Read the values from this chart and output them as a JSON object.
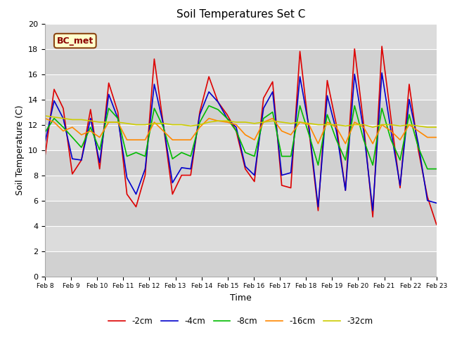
{
  "title": "Soil Temperatures Set C",
  "xlabel": "Time",
  "ylabel": "Soil Temperature (C)",
  "ylim": [
    0,
    20
  ],
  "yticks": [
    0,
    2,
    4,
    6,
    8,
    10,
    12,
    14,
    16,
    18,
    20
  ],
  "annotation_text": "BC_met",
  "bg_color": "#d8d8d8",
  "fig_color": "#ffffff",
  "line_colors": {
    "-2cm": "#dd0000",
    "-4cm": "#0000cc",
    "-8cm": "#00bb00",
    "-16cm": "#ff8800",
    "-32cm": "#cccc00"
  },
  "legend_labels": [
    "-2cm",
    "-4cm",
    "-8cm",
    "-16cm",
    "-32cm"
  ],
  "x_tick_labels": [
    "Feb 8",
    "Feb 9",
    "Feb 10",
    "Feb 11",
    "Feb 12",
    "Feb 13",
    "Feb 14",
    "Feb 15",
    "Feb 16",
    "Feb 17",
    "Feb 18",
    "Feb 19",
    "Feb 20",
    "Feb 21",
    "Feb 22",
    "Feb 23"
  ],
  "data_2cm": [
    9.5,
    14.8,
    13.3,
    8.1,
    9.2,
    13.2,
    8.5,
    15.3,
    13.0,
    6.5,
    5.5,
    8.0,
    17.2,
    12.0,
    6.5,
    8.0,
    8.0,
    13.0,
    15.8,
    13.8,
    12.8,
    11.5,
    8.5,
    7.5,
    14.1,
    15.4,
    7.2,
    7.0,
    17.8,
    11.5,
    5.2,
    15.5,
    12.0,
    6.8,
    18.0,
    12.0,
    4.7,
    18.2,
    12.5,
    7.0,
    15.2,
    10.0,
    6.3,
    4.1
  ],
  "data_4cm": [
    10.6,
    13.9,
    12.5,
    9.3,
    9.2,
    12.5,
    9.0,
    14.4,
    12.5,
    7.8,
    6.5,
    8.5,
    15.2,
    12.0,
    7.4,
    8.6,
    8.5,
    12.8,
    14.6,
    13.8,
    12.5,
    11.8,
    8.7,
    8.0,
    13.3,
    14.6,
    8.0,
    8.2,
    15.8,
    11.8,
    5.5,
    14.3,
    11.5,
    6.8,
    16.0,
    11.5,
    5.2,
    16.1,
    11.5,
    7.2,
    14.0,
    10.5,
    6.0,
    5.8
  ],
  "data_8cm": [
    11.4,
    12.5,
    11.8,
    11.0,
    10.2,
    11.8,
    10.0,
    13.3,
    12.5,
    9.5,
    9.8,
    9.5,
    13.3,
    11.8,
    9.3,
    9.8,
    9.5,
    12.2,
    13.5,
    13.2,
    12.5,
    11.5,
    9.8,
    9.5,
    12.5,
    13.0,
    9.5,
    9.5,
    13.5,
    11.2,
    8.8,
    12.8,
    10.8,
    9.2,
    13.5,
    10.8,
    8.8,
    13.3,
    10.8,
    9.2,
    12.8,
    10.2,
    8.5,
    8.5
  ],
  "data_16cm": [
    12.5,
    12.2,
    11.5,
    11.8,
    11.2,
    11.5,
    11.0,
    12.2,
    12.2,
    10.8,
    10.8,
    10.8,
    12.2,
    11.5,
    10.8,
    10.8,
    10.8,
    11.8,
    12.5,
    12.3,
    12.2,
    12.0,
    11.2,
    10.8,
    12.2,
    12.5,
    11.5,
    11.2,
    12.2,
    12.0,
    10.5,
    12.2,
    11.8,
    10.5,
    12.2,
    11.8,
    10.5,
    12.0,
    11.5,
    10.8,
    12.0,
    11.5,
    11.0,
    11.0
  ],
  "data_32cm": [
    12.7,
    12.6,
    12.5,
    12.4,
    12.4,
    12.3,
    12.2,
    12.2,
    12.2,
    12.1,
    12.0,
    12.0,
    12.1,
    12.1,
    12.0,
    12.0,
    11.9,
    12.0,
    12.2,
    12.3,
    12.3,
    12.2,
    12.2,
    12.1,
    12.2,
    12.3,
    12.2,
    12.1,
    12.2,
    12.1,
    12.0,
    12.0,
    12.0,
    11.9,
    12.0,
    12.0,
    11.8,
    12.0,
    12.0,
    11.9,
    12.0,
    11.9,
    11.8,
    11.8
  ]
}
